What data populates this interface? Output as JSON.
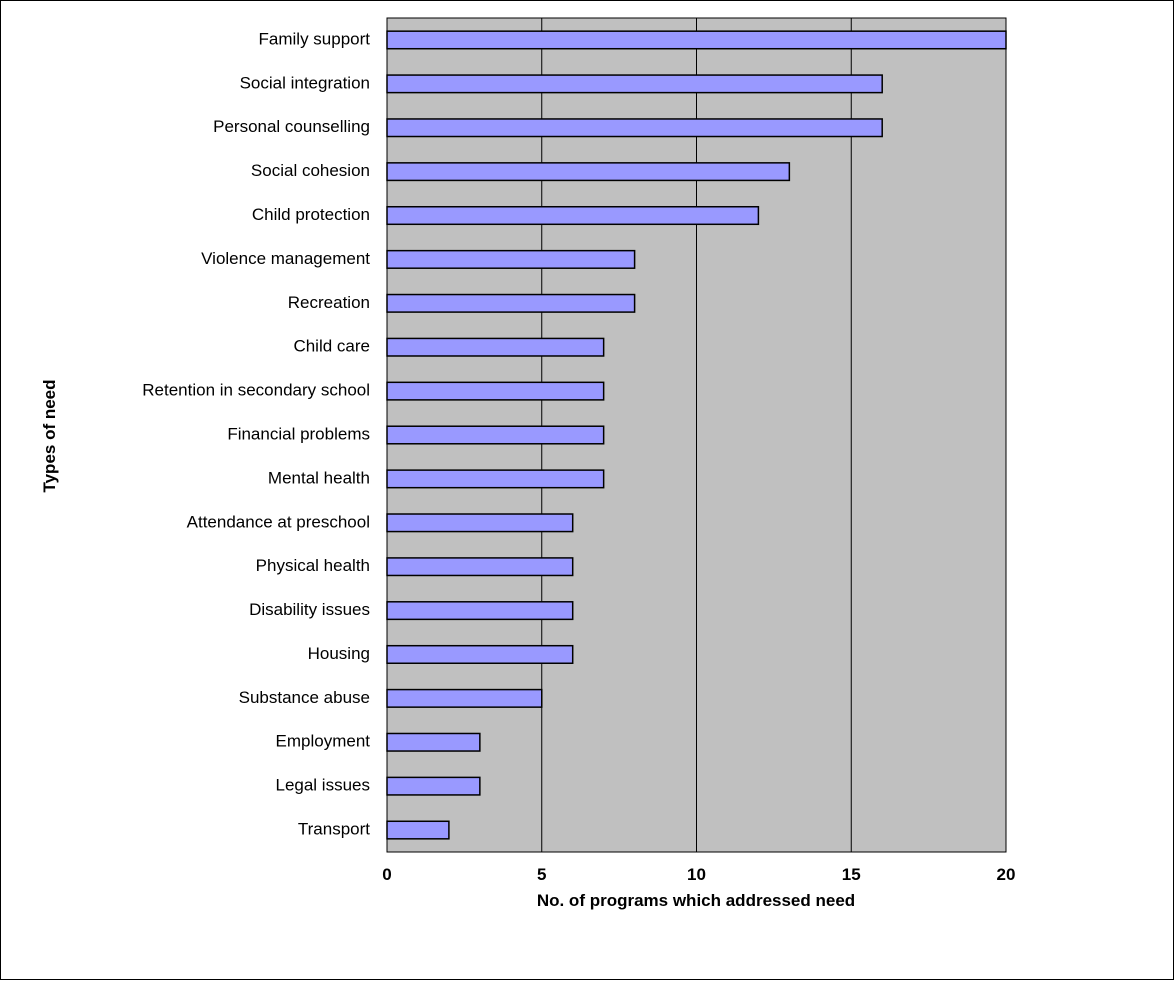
{
  "chart_data": {
    "type": "bar",
    "orientation": "horizontal",
    "title": "",
    "xlabel": "No. of programs which addressed need",
    "ylabel": "Types of need",
    "xlim": [
      0,
      20
    ],
    "x_ticks": [
      0,
      5,
      10,
      15,
      20
    ],
    "grid": "vertical",
    "legend": "none",
    "categories": [
      "Family support",
      "Social integration",
      "Personal counselling",
      "Social cohesion",
      "Child protection",
      "Violence management",
      "Recreation",
      "Child care",
      "Retention in secondary school",
      "Financial problems",
      "Mental health",
      "Attendance at preschool",
      "Physical health",
      "Disability issues",
      "Housing",
      "Substance abuse",
      "Employment",
      "Legal issues",
      "Transport"
    ],
    "values": [
      20,
      16,
      16,
      13,
      12,
      8,
      8,
      7,
      7,
      7,
      7,
      6,
      6,
      6,
      6,
      5,
      3,
      3,
      2
    ],
    "colors": {
      "plot_background": "#c0c0c0",
      "bar_fill": "#9999ff",
      "bar_stroke": "#000000",
      "gridline": "#000000"
    }
  }
}
